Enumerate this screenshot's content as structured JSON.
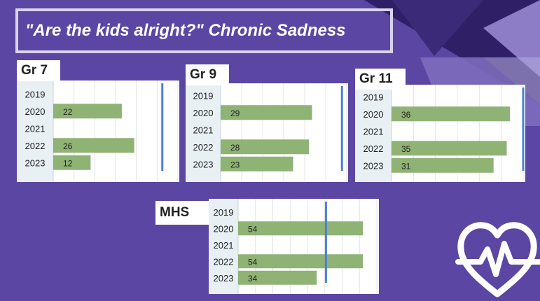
{
  "title": "\"Are the kids alright?\" Chronic Sadness",
  "colors": {
    "background": "#5b46a3",
    "bar": "#8fb275",
    "reference_line": "#4a7fd6",
    "axis_column": "#e8f0f4"
  },
  "icon": "heart-pulse-icon",
  "chart_data": [
    {
      "type": "bar",
      "title": "Gr 7",
      "categories": [
        "2019",
        "2020",
        "2021",
        "2022",
        "2023"
      ],
      "values": [
        null,
        22,
        null,
        26,
        12
      ],
      "value_labels": [
        "",
        "22",
        "",
        "26",
        "12"
      ],
      "xlim": [
        0,
        40
      ],
      "reference_line": 35,
      "grid": true
    },
    {
      "type": "bar",
      "title": "Gr 9",
      "categories": [
        "2019",
        "2020",
        "2021",
        "2022",
        "2023"
      ],
      "values": [
        null,
        29,
        null,
        28,
        23
      ],
      "value_labels": [
        "",
        "29",
        "",
        "28",
        "23"
      ],
      "xlim": [
        0,
        40
      ],
      "reference_line": 38.5,
      "grid": true
    },
    {
      "type": "bar",
      "title": "Gr 11",
      "categories": [
        "2019",
        "2020",
        "2021",
        "2022",
        "2023"
      ],
      "values": [
        null,
        36,
        null,
        35,
        31
      ],
      "value_labels": [
        "",
        "36",
        "",
        "35",
        "31"
      ],
      "xlim": [
        0,
        40
      ],
      "reference_line": 40,
      "grid": true
    },
    {
      "type": "bar",
      "title": "MHS",
      "categories": [
        "2019",
        "2020",
        "2021",
        "2022",
        "2023"
      ],
      "values": [
        null,
        54,
        null,
        54,
        34
      ],
      "value_labels": [
        "",
        "54",
        "",
        "54",
        "34"
      ],
      "xlim": [
        0,
        60
      ],
      "reference_line": 38,
      "grid": true
    }
  ]
}
